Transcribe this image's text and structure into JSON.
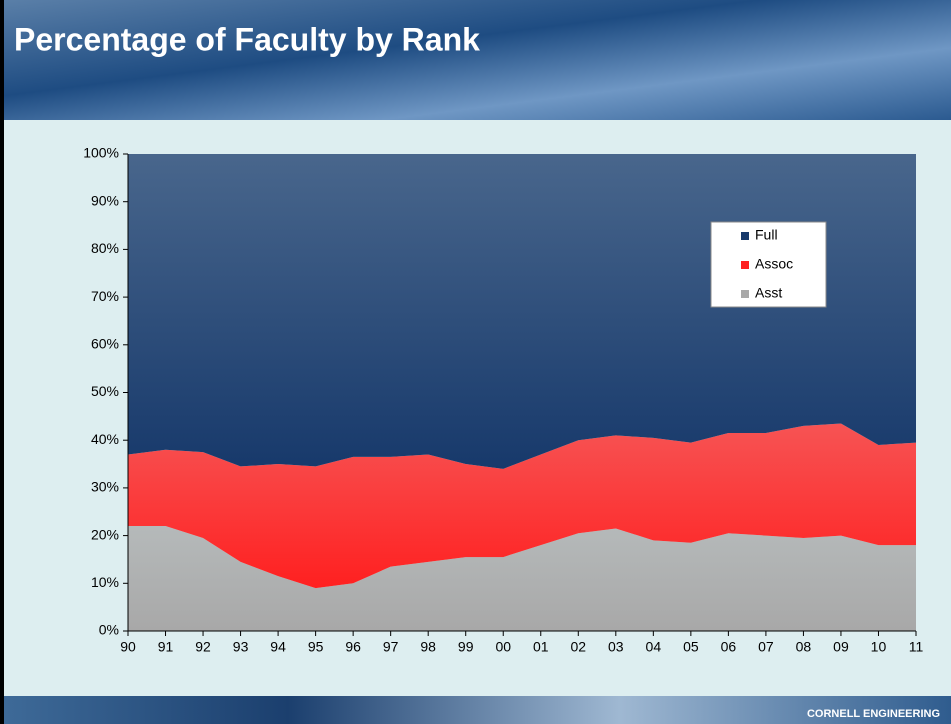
{
  "chart_data": {
    "type": "stacked-area",
    "title": "Percentage of Faculty by Rank",
    "footer": "CORNELL ENGINEERING",
    "categories": [
      "90",
      "91",
      "92",
      "93",
      "94",
      "95",
      "96",
      "97",
      "98",
      "99",
      "00",
      "01",
      "02",
      "03",
      "04",
      "05",
      "06",
      "07",
      "08",
      "09",
      "10",
      "11"
    ],
    "series": [
      {
        "name": "Full",
        "color": "#17396b",
        "values": [
          63,
          62,
          62.5,
          65.5,
          65,
          65.5,
          63.5,
          63.5,
          63,
          65,
          66,
          63,
          60,
          59,
          59.5,
          60.5,
          58.5,
          58.5,
          57,
          56.5,
          61,
          60.5
        ]
      },
      {
        "name": "Assoc",
        "color": "#ff2020",
        "values": [
          15,
          16,
          18,
          20,
          23.5,
          25.5,
          26.5,
          23,
          22.5,
          19.5,
          18.5,
          19,
          19.5,
          19.5,
          21.5,
          21,
          21,
          21.5,
          23.5,
          23.5,
          21,
          21.5
        ]
      },
      {
        "name": "Asst",
        "color": "#a8a8a8",
        "values": [
          22,
          22,
          19.5,
          14.5,
          11.5,
          9,
          10,
          13.5,
          14.5,
          15.5,
          15.5,
          18,
          20.5,
          21.5,
          19,
          18.5,
          20.5,
          20,
          19.5,
          20,
          18,
          18
        ]
      }
    ],
    "ylim": [
      0,
      100
    ],
    "yticks": [
      {
        "value": 0,
        "label": "0%"
      },
      {
        "value": 10,
        "label": "10%"
      },
      {
        "value": 20,
        "label": "20%"
      },
      {
        "value": 30,
        "label": "30%"
      },
      {
        "value": 40,
        "label": "40%"
      },
      {
        "value": 50,
        "label": "50%"
      },
      {
        "value": 60,
        "label": "60%"
      },
      {
        "value": 70,
        "label": "70%"
      },
      {
        "value": 80,
        "label": "80%"
      },
      {
        "value": 90,
        "label": "90%"
      },
      {
        "value": 100,
        "label": "100%"
      }
    ],
    "legend": "upper-right"
  }
}
